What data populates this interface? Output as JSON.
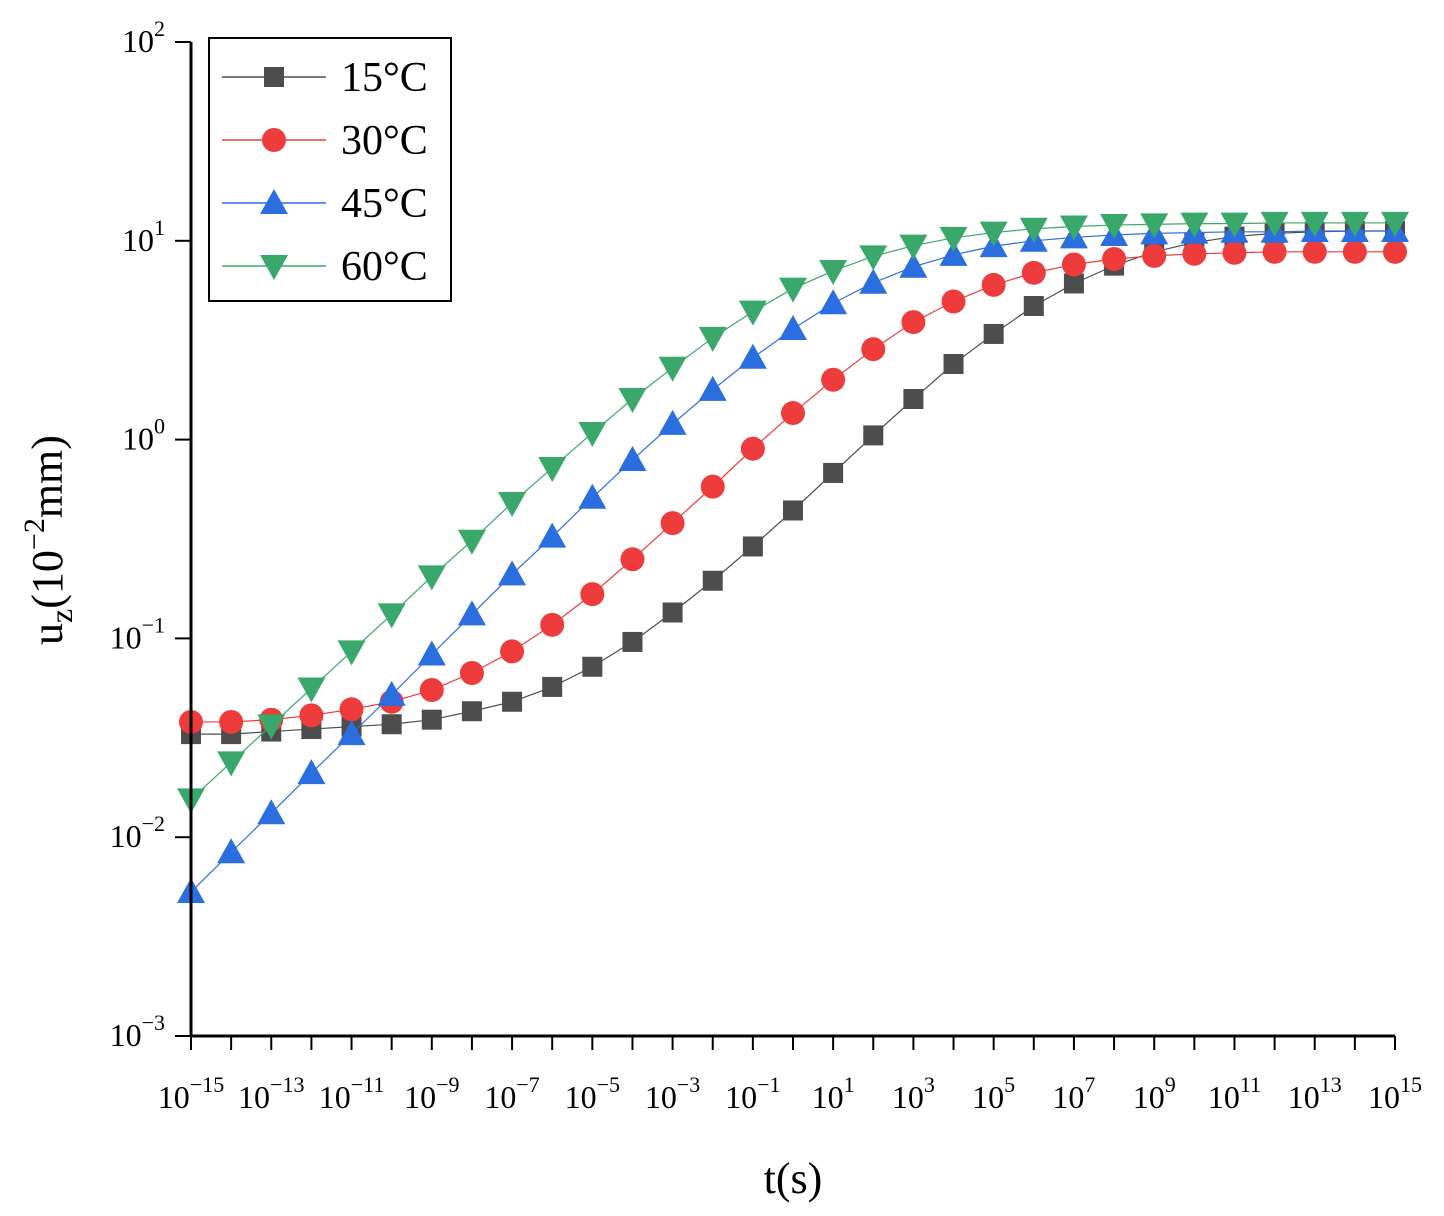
{
  "chart_data": {
    "type": "line",
    "title": "",
    "xlabel": "t(s)",
    "ylabel_base": "u",
    "ylabel_sub": "z",
    "ylabel_unit_open": "(10",
    "ylabel_unit_exp": "−2",
    "ylabel_unit_close": "mm)",
    "x_scale": "log",
    "y_scale": "log",
    "xlim_exp": [
      -15,
      15
    ],
    "ylim_exp": [
      -3,
      2
    ],
    "x_tick_exponents": [
      -15,
      -13,
      -11,
      -9,
      -7,
      -5,
      -3,
      -1,
      1,
      3,
      5,
      7,
      9,
      11,
      13,
      15
    ],
    "x_tick_labels": [
      "10",
      "10",
      "10",
      "10",
      "10",
      "10",
      "10",
      "10",
      "10",
      "10",
      "10",
      "10",
      "10",
      "10",
      "10",
      "10"
    ],
    "x_tick_sups": [
      "−15",
      "−13",
      "−11",
      "−9",
      "−7",
      "−5",
      "−3",
      "−1",
      "1",
      "3",
      "5",
      "7",
      "9",
      "11",
      "13",
      "15"
    ],
    "y_tick_exponents": [
      -3,
      -2,
      -1,
      0,
      1,
      2
    ],
    "y_tick_labels": [
      "10",
      "10",
      "10",
      "10",
      "10",
      "10"
    ],
    "y_tick_sups": [
      "−3",
      "−2",
      "−1",
      "0",
      "1",
      "2"
    ],
    "legend_position": "top-left",
    "x_log10": [
      -15,
      -14,
      -13,
      -12,
      -11,
      -10,
      -9,
      -8,
      -7,
      -6,
      -5,
      -4,
      -3,
      -2,
      -1,
      0,
      1,
      2,
      3,
      4,
      5,
      6,
      7,
      8,
      9,
      10,
      11,
      12,
      13,
      14,
      15
    ],
    "series": [
      {
        "name": "15°C",
        "marker": "square",
        "color": "#4d4d4d",
        "values": [
          0.033,
          0.033,
          0.034,
          0.035,
          0.036,
          0.037,
          0.039,
          0.043,
          0.048,
          0.057,
          0.072,
          0.096,
          0.135,
          0.195,
          0.29,
          0.44,
          0.68,
          1.05,
          1.6,
          2.4,
          3.4,
          4.7,
          6.1,
          7.5,
          8.8,
          9.8,
          10.5,
          10.9,
          11.1,
          11.2,
          11.2
        ]
      },
      {
        "name": "30°C",
        "marker": "circle",
        "color": "#ee3b3b",
        "values": [
          0.038,
          0.038,
          0.039,
          0.041,
          0.044,
          0.048,
          0.055,
          0.067,
          0.086,
          0.117,
          0.167,
          0.25,
          0.38,
          0.58,
          0.9,
          1.36,
          2.0,
          2.85,
          3.9,
          4.95,
          6.0,
          6.9,
          7.6,
          8.1,
          8.4,
          8.6,
          8.7,
          8.8,
          8.8,
          8.8,
          8.8
        ]
      },
      {
        "name": "45°C",
        "marker": "triangle-up",
        "color": "#2a6ee0",
        "values": [
          0.0053,
          0.0084,
          0.0132,
          0.021,
          0.033,
          0.052,
          0.083,
          0.132,
          0.21,
          0.325,
          0.51,
          0.79,
          1.2,
          1.78,
          2.58,
          3.6,
          4.85,
          6.15,
          7.4,
          8.5,
          9.4,
          10.0,
          10.4,
          10.7,
          10.9,
          11.0,
          11.1,
          11.1,
          11.2,
          11.2,
          11.2
        ]
      },
      {
        "name": "60°C",
        "marker": "triangle-down",
        "color": "#3aa86b",
        "values": [
          0.0155,
          0.0238,
          0.0365,
          0.056,
          0.086,
          0.132,
          0.205,
          0.31,
          0.48,
          0.72,
          1.08,
          1.6,
          2.3,
          3.25,
          4.4,
          5.75,
          7.05,
          8.35,
          9.45,
          10.35,
          11.0,
          11.5,
          11.8,
          12.0,
          12.1,
          12.2,
          12.2,
          12.3,
          12.3,
          12.3,
          12.3
        ]
      }
    ]
  }
}
